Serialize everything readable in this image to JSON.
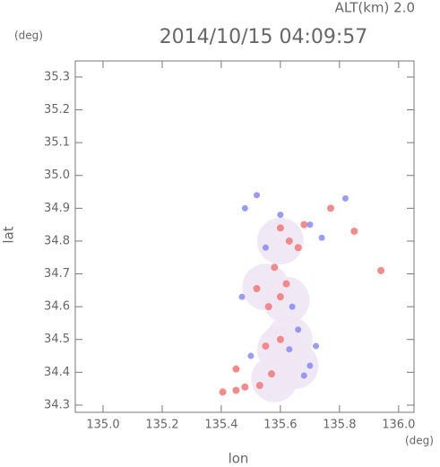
{
  "chart_data": {
    "type": "scatter",
    "title": "2014/10/15 04:09:57",
    "subtitle": "ALT(km) 2.0",
    "y_unit": "(deg)",
    "x_unit": "(deg)",
    "x_label": "lon",
    "y_label": "lat",
    "xlim": [
      134.906,
      136.052
    ],
    "ylim": [
      34.278,
      35.349
    ],
    "xticks": [
      {
        "value": 135,
        "label": "135.0"
      },
      135.2,
      135.4,
      135.6,
      135.8,
      {
        "value": 136,
        "label": "136.0"
      }
    ],
    "yticks": [
      34.3,
      34.4,
      34.5,
      34.6,
      34.7,
      34.8,
      34.9,
      {
        "value": 35,
        "label": "35.0"
      },
      35.1,
      35.2,
      35.3
    ],
    "series": [
      {
        "color": "#efe6f4",
        "x": [
          135.55,
          135.62,
          135.6,
          135.65,
          135.63,
          135.6,
          135.58
        ],
        "values": [
          34.66,
          34.62,
          34.47,
          34.42,
          34.5,
          34.8,
          34.38
        ]
      },
      {
        "color": "#f07878",
        "x": [
          135.405,
          135.45,
          135.48,
          135.53,
          135.57,
          135.45,
          135.6,
          135.55,
          135.58,
          135.62,
          135.56,
          135.6,
          135.6,
          135.63,
          135.68,
          135.85,
          135.94,
          135.77,
          135.52,
          135.66
        ],
        "values": [
          34.34,
          34.345,
          34.355,
          34.36,
          34.395,
          34.41,
          34.5,
          34.48,
          34.72,
          34.67,
          34.6,
          34.63,
          34.84,
          34.8,
          34.85,
          34.83,
          34.71,
          34.9,
          34.655,
          34.78
        ]
      },
      {
        "color": "#8a8af0",
        "x": [
          135.52,
          135.48,
          135.7,
          135.68,
          135.72,
          135.66,
          135.5,
          135.63,
          135.7,
          135.74,
          135.82,
          135.6,
          135.47,
          135.64,
          135.55
        ],
        "values": [
          34.94,
          34.9,
          34.42,
          34.39,
          34.48,
          34.53,
          34.45,
          34.47,
          34.85,
          34.81,
          34.93,
          34.88,
          34.63,
          34.6,
          34.78
        ]
      }
    ]
  }
}
